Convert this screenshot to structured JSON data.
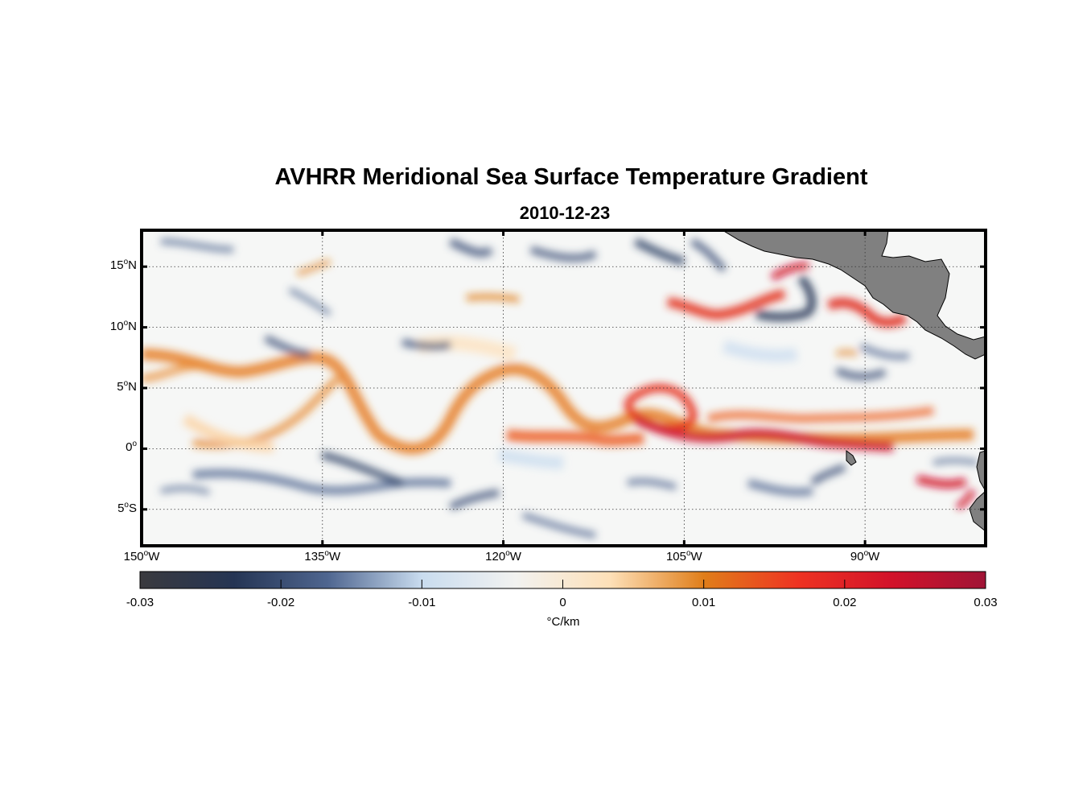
{
  "title": "AVHRR Meridional Sea Surface Temperature Gradient",
  "subtitle": "2010-12-23",
  "map": {
    "type": "map",
    "region": "Eastern tropical Pacific",
    "projection": "equirectangular",
    "variable": "meridional SST gradient",
    "lon_range": [
      -150,
      -80
    ],
    "lat_range": [
      -8,
      18
    ],
    "land_color": "#808080",
    "grid": "dotted",
    "lon_ticks": [
      {
        "value": -150,
        "deg": "150",
        "hemi": "W"
      },
      {
        "value": -135,
        "deg": "135",
        "hemi": "W"
      },
      {
        "value": -120,
        "deg": "120",
        "hemi": "W"
      },
      {
        "value": -105,
        "deg": "105",
        "hemi": "W"
      },
      {
        "value": -90,
        "deg": "90",
        "hemi": "W"
      }
    ],
    "lat_ticks": [
      {
        "value": 15,
        "deg": "15",
        "hemi": "N"
      },
      {
        "value": 10,
        "deg": "10",
        "hemi": "N"
      },
      {
        "value": 5,
        "deg": "5",
        "hemi": "N"
      },
      {
        "value": 0,
        "deg": "0",
        "hemi": ""
      },
      {
        "value": -5,
        "deg": "5",
        "hemi": "S"
      }
    ]
  },
  "colorbar": {
    "min": -0.03,
    "max": 0.03,
    "tick_labels": [
      "-0.03",
      "-0.02",
      "-0.01",
      "0",
      "0.01",
      "0.02",
      "0.03"
    ],
    "units": "°C/km",
    "colors": [
      "#3a3a3e",
      "#253554",
      "#4f6690",
      "#c9dcef",
      "#f2f2f0",
      "#fde0b8",
      "#e07e1a",
      "#ee3322",
      "#d2122a",
      "#a01436"
    ]
  }
}
